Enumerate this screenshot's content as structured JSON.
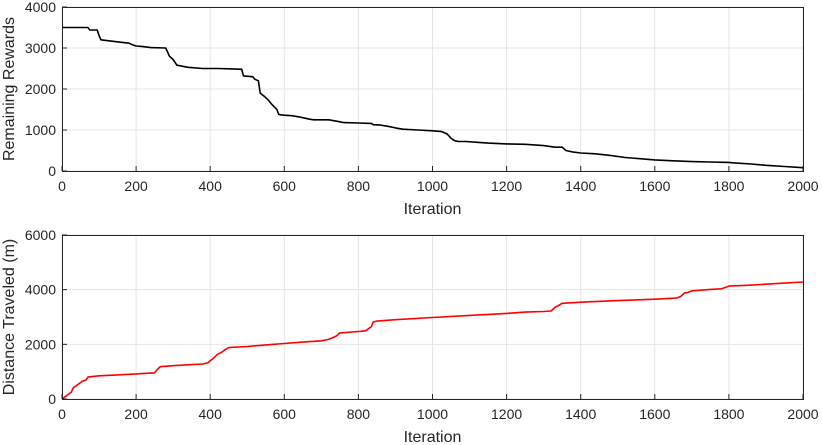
{
  "chart_data": [
    {
      "type": "line",
      "xlabel": "Iteration",
      "ylabel": "Remaining Rewards",
      "xlim": [
        0,
        2000
      ],
      "ylim": [
        0,
        4000
      ],
      "xticks": [
        "0",
        "200",
        "400",
        "600",
        "800",
        "1000",
        "1200",
        "1400",
        "1600",
        "1800",
        "2000"
      ],
      "yticks": [
        "0",
        "1000",
        "2000",
        "3000",
        "4000"
      ],
      "grid": true,
      "series": [
        {
          "color": "#000000",
          "x": [
            0,
            70,
            75,
            95,
            100,
            105,
            140,
            160,
            180,
            190,
            200,
            215,
            240,
            280,
            285,
            290,
            300,
            310,
            340,
            380,
            420,
            460,
            485,
            490,
            515,
            520,
            530,
            535,
            545,
            555,
            565,
            580,
            585,
            590,
            600,
            620,
            640,
            670,
            680,
            720,
            750,
            760,
            800,
            835,
            840,
            860,
            885,
            900,
            920,
            960,
            1000,
            1025,
            1040,
            1050,
            1060,
            1070,
            1090,
            1120,
            1150,
            1200,
            1250,
            1300,
            1330,
            1350,
            1360,
            1380,
            1400,
            1440,
            1480,
            1520,
            1560,
            1600,
            1650,
            1700,
            1750,
            1800,
            1810,
            1860,
            1900,
            1950,
            2000
          ],
          "y": [
            3500,
            3500,
            3440,
            3440,
            3300,
            3200,
            3160,
            3140,
            3120,
            3080,
            3050,
            3040,
            3010,
            3000,
            2900,
            2800,
            2720,
            2580,
            2530,
            2500,
            2500,
            2490,
            2480,
            2320,
            2300,
            2240,
            2200,
            1900,
            1830,
            1750,
            1640,
            1500,
            1380,
            1370,
            1360,
            1350,
            1320,
            1260,
            1250,
            1250,
            1200,
            1180,
            1170,
            1160,
            1130,
            1120,
            1080,
            1050,
            1020,
            1000,
            980,
            960,
            900,
            800,
            740,
            720,
            720,
            700,
            680,
            660,
            650,
            620,
            580,
            580,
            500,
            460,
            440,
            420,
            380,
            330,
            300,
            270,
            250,
            230,
            220,
            210,
            200,
            170,
            140,
            110,
            80
          ]
        }
      ]
    },
    {
      "type": "line",
      "xlabel": "Iteration",
      "ylabel": "Distance Traveled (m)",
      "xlim": [
        0,
        2000
      ],
      "ylim": [
        0,
        6000
      ],
      "xticks": [
        "0",
        "200",
        "400",
        "600",
        "800",
        "1000",
        "1200",
        "1400",
        "1600",
        "1800",
        "2000"
      ],
      "yticks": [
        "0",
        "2000",
        "4000",
        "6000"
      ],
      "grid": true,
      "series": [
        {
          "color": "#ff0000",
          "x": [
            0,
            10,
            20,
            25,
            30,
            40,
            50,
            55,
            65,
            70,
            100,
            150,
            200,
            250,
            255,
            265,
            300,
            350,
            380,
            395,
            400,
            410,
            420,
            430,
            440,
            450,
            500,
            550,
            600,
            650,
            700,
            720,
            740,
            750,
            800,
            810,
            820,
            835,
            840,
            850,
            900,
            1000,
            1100,
            1200,
            1250,
            1300,
            1320,
            1330,
            1340,
            1350,
            1400,
            1500,
            1600,
            1640,
            1660,
            1670,
            1680,
            1690,
            1700,
            1750,
            1780,
            1790,
            1800,
            1850,
            1900,
            1950,
            2000
          ],
          "y": [
            0,
            100,
            200,
            250,
            400,
            500,
            600,
            650,
            700,
            800,
            850,
            880,
            920,
            960,
            1050,
            1180,
            1220,
            1260,
            1280,
            1330,
            1400,
            1500,
            1640,
            1700,
            1800,
            1880,
            1920,
            1980,
            2030,
            2080,
            2130,
            2180,
            2300,
            2420,
            2470,
            2480,
            2500,
            2650,
            2820,
            2850,
            2900,
            2980,
            3060,
            3130,
            3180,
            3200,
            3220,
            3350,
            3420,
            3500,
            3540,
            3600,
            3650,
            3680,
            3700,
            3750,
            3880,
            3900,
            3960,
            4010,
            4030,
            4080,
            4130,
            4160,
            4200,
            4240,
            4280
          ]
        }
      ]
    }
  ]
}
